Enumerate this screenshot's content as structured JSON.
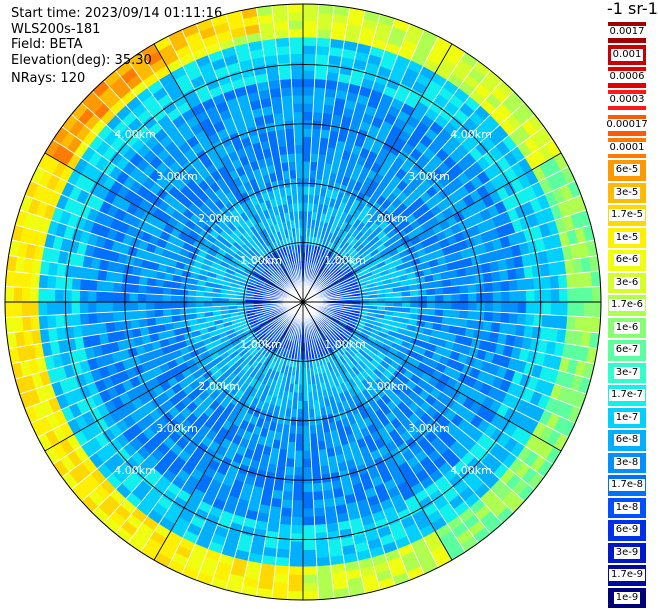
{
  "header": {
    "start_time": "Start time: 2023/09/14 01:11:16",
    "instrument": "WLS200s-181",
    "field": "Field: BETA",
    "elevation": "Elevation(deg): 35.30",
    "nrays": "NRays: 120"
  },
  "units": "-1 sr-1",
  "colors": {
    "background": "#ffffff",
    "ring_line": "#000000",
    "radial_line": "#000000",
    "ring_label": "#ffffff"
  },
  "chart_data": {
    "type": "heatmap",
    "projection": "polar-ppi",
    "title": "",
    "field": "BETA",
    "elevation_deg": 35.3,
    "n_rays": 120,
    "range_rings_km": [
      1,
      2,
      3,
      4
    ],
    "ring_labels": [
      "1.00km",
      "2.00km",
      "3.00km",
      "4.00km"
    ],
    "radial_spacing_deg": 30,
    "grid": true,
    "colorscale": {
      "labels": [
        "0.0017",
        "0.001",
        "0.0006",
        "0.0003",
        "0.00017",
        "0.0001",
        "6e-5",
        "3e-5",
        "1.7e-5",
        "1e-5",
        "6e-6",
        "3e-6",
        "1.7e-6",
        "1e-6",
        "6e-7",
        "3e-7",
        "1.7e-7",
        "1e-7",
        "6e-8",
        "3e-8",
        "1.7e-8",
        "1e-8",
        "6e-9",
        "3e-9",
        "1.7e-9",
        "1e-9"
      ],
      "colors": [
        "#a00000",
        "#c80000",
        "#e00000",
        "#ff1a1a",
        "#ff5a00",
        "#ff7a00",
        "#ff9900",
        "#ffbb00",
        "#ffd800",
        "#fff000",
        "#f0ff10",
        "#d4ff2b",
        "#aeff50",
        "#88ff75",
        "#5cffa0",
        "#30ffcc",
        "#10f0ee",
        "#00d0ff",
        "#00b0ff",
        "#0090ff",
        "#0070ff",
        "#0050ff",
        "#0030e8",
        "#0018c8",
        "#000aa0",
        "#000078"
      ]
    },
    "approx_bands": [
      {
        "from_km": 0.0,
        "to_km": 1.0,
        "level": "1e-8"
      },
      {
        "from_km": 1.0,
        "to_km": 2.0,
        "level": "6e-8"
      },
      {
        "from_km": 2.0,
        "to_km": 3.8,
        "level": "3e-8"
      },
      {
        "from_km": 3.8,
        "to_km": 4.4,
        "level": "1e-7"
      },
      {
        "from_km": 4.4,
        "to_km": 4.95,
        "level": "3e-6"
      }
    ]
  }
}
